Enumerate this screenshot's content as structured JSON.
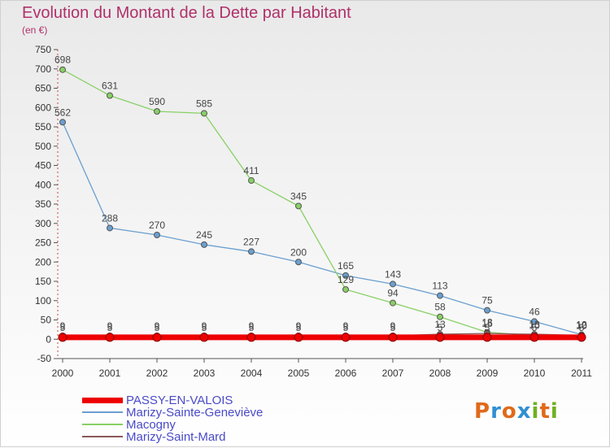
{
  "header": {
    "title": "Evolution du Montant de la Dette par Habitant",
    "unit": "(en €)"
  },
  "logo": {
    "text": "Proxiti",
    "letter_colors": [
      "#e06a1a",
      "#2f8fd4",
      "#e06a1a",
      "#2f8fd4",
      "#70b020",
      "#e06a1a",
      "#70b020"
    ]
  },
  "chart_data": {
    "type": "line",
    "title": "Evolution du Montant de la Dette par Habitant",
    "subtitle": "(en €)",
    "xlabel": "",
    "ylabel": "",
    "x": [
      "2000",
      "2001",
      "2002",
      "2003",
      "2004",
      "2005",
      "2006",
      "2007",
      "2008",
      "2009",
      "2010",
      "2011"
    ],
    "yticks": [
      "-50",
      "0",
      "50",
      "100",
      "150",
      "200",
      "250",
      "300",
      "350",
      "400",
      "450",
      "500",
      "550",
      "600",
      "650",
      "700",
      "750"
    ],
    "ylim": [
      -50,
      750
    ],
    "grid": false,
    "legend_position": "bottom-left",
    "series": [
      {
        "name": "PASSY-EN-VALOIS",
        "color": "#ee0000",
        "values": [
          5,
          5,
          5,
          5,
          5,
          5,
          5,
          5,
          5,
          5,
          5,
          5
        ],
        "labels": [
          "5",
          "5",
          "5",
          "5",
          "5",
          "5",
          "5",
          "5",
          "5",
          "5",
          "5",
          "5"
        ]
      },
      {
        "name": "Marizy-Sainte-Geneviève",
        "color": "#6b9fd0",
        "values": [
          562,
          288,
          270,
          245,
          227,
          200,
          165,
          143,
          113,
          75,
          46,
          12
        ],
        "labels": [
          "562",
          "288",
          "270",
          "245",
          "227",
          "200",
          "165",
          "143",
          "113",
          "75",
          "46",
          "12"
        ]
      },
      {
        "name": "Macogny",
        "color": "#88d064",
        "values": [
          698,
          631,
          590,
          585,
          411,
          345,
          129,
          94,
          58,
          18,
          10,
          10
        ],
        "labels": [
          "698",
          "631",
          "590",
          "585",
          "411",
          "345",
          "129",
          "94",
          "58",
          "18",
          "10",
          "10"
        ]
      },
      {
        "name": "Marizy-Saint-Mard",
        "color": "#8b5a5a",
        "values": [
          9,
          9,
          9,
          9,
          9,
          9,
          9,
          9,
          13,
          15,
          13,
          10
        ],
        "labels": [
          "9",
          "9",
          "9",
          "9",
          "9",
          "9",
          "9",
          "9",
          "13",
          "15",
          "13",
          "10"
        ]
      }
    ]
  }
}
